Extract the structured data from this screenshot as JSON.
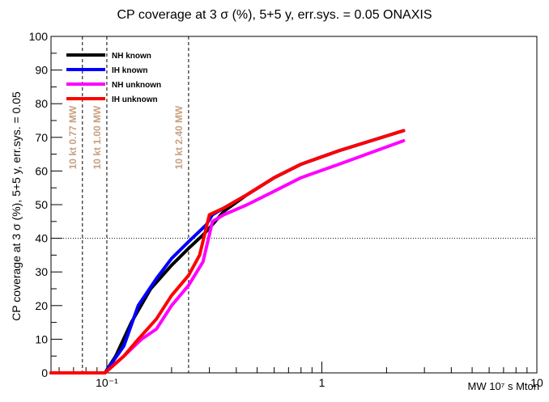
{
  "chart_data": {
    "type": "line",
    "title": "CP coverage at 3 σ (%), 5+5 y, err.sys. = 0.05 ONAXIS",
    "ylabel": "CP coverage at 3 σ (%), 5+5 y, err.sys. = 0.05",
    "xlabel": "MW 10⁷ s Mton",
    "x_scale": "log",
    "xlim": [
      0.055,
      10
    ],
    "ylim": [
      0,
      100
    ],
    "x_ticks": [
      {
        "value": 0.1,
        "label": "10⁻¹"
      },
      {
        "value": 1,
        "label": "1"
      },
      {
        "value": 10,
        "label": "10"
      }
    ],
    "y_ticks": [
      0,
      10,
      20,
      30,
      40,
      50,
      60,
      70,
      80,
      90,
      100
    ],
    "legend_position": "top-left",
    "series": [
      {
        "name": "NH known",
        "color": "#000000",
        "x": [
          0.055,
          0.098,
          0.11,
          0.13,
          0.16,
          0.2,
          0.24,
          0.28,
          0.3,
          0.35,
          0.45,
          0.6,
          0.8,
          1.2,
          2.4
        ],
        "y": [
          0,
          0,
          5,
          15,
          25,
          32,
          37,
          41,
          43,
          48,
          53,
          58,
          62,
          66,
          72
        ]
      },
      {
        "name": "IH known",
        "color": "#0000ff",
        "x": [
          0.055,
          0.098,
          0.12,
          0.14,
          0.17,
          0.2,
          0.24,
          0.29,
          0.31,
          0.35,
          0.45,
          0.6,
          0.8,
          1.2,
          2.4
        ],
        "y": [
          0,
          0,
          8,
          20,
          28,
          34,
          39,
          44,
          47,
          49,
          53,
          58,
          62,
          66,
          72
        ]
      },
      {
        "name": "NH unknown",
        "color": "#ff00ff",
        "x": [
          0.055,
          0.098,
          0.12,
          0.145,
          0.17,
          0.2,
          0.24,
          0.28,
          0.31,
          0.35,
          0.45,
          0.6,
          0.8,
          1.2,
          2.4
        ],
        "y": [
          0,
          0,
          5,
          10,
          13,
          20,
          26,
          33,
          45,
          47,
          50,
          54,
          58,
          62,
          69
        ]
      },
      {
        "name": "IH unknown",
        "color": "#ff0000",
        "x": [
          0.055,
          0.098,
          0.12,
          0.14,
          0.17,
          0.2,
          0.24,
          0.27,
          0.3,
          0.35,
          0.45,
          0.6,
          0.8,
          1.2,
          2.4
        ],
        "y": [
          0,
          0,
          5,
          10,
          16,
          23,
          29,
          35,
          47,
          49,
          53,
          58,
          62,
          66,
          72
        ]
      }
    ],
    "reference_lines": [
      {
        "axis": "x",
        "value": 0.077,
        "label": "10 kt 0.77 MW",
        "color": "#c8a080"
      },
      {
        "axis": "x",
        "value": 0.1,
        "label": "10 kt 1.00 MW",
        "color": "#c8a080"
      },
      {
        "axis": "x",
        "value": 0.24,
        "label": "10 kt 2.40 MW",
        "color": "#c8a080"
      },
      {
        "axis": "y",
        "value": 40
      }
    ]
  }
}
